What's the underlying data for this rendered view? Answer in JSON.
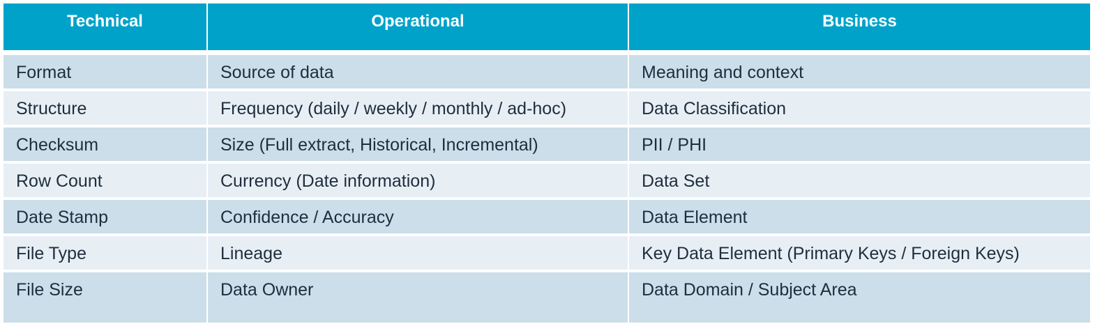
{
  "table": {
    "header": [
      "Technical",
      "Operational",
      "Business"
    ],
    "rows": [
      [
        "Format",
        "Source of data",
        "Meaning and context"
      ],
      [
        "Structure",
        "Frequency (daily / weekly / monthly / ad-hoc)",
        "Data Classification"
      ],
      [
        "Checksum",
        "Size (Full extract, Historical, Incremental)",
        "PII / PHI"
      ],
      [
        "Row Count",
        "Currency (Date information)",
        "Data Set"
      ],
      [
        "Date Stamp",
        "Confidence / Accuracy",
        "Data Element"
      ],
      [
        "File Type",
        "Lineage",
        "Key Data Element (Primary Keys / Foreign Keys)"
      ],
      [
        "File Size",
        "Data Owner",
        "Data Domain / Subject Area"
      ]
    ]
  }
}
